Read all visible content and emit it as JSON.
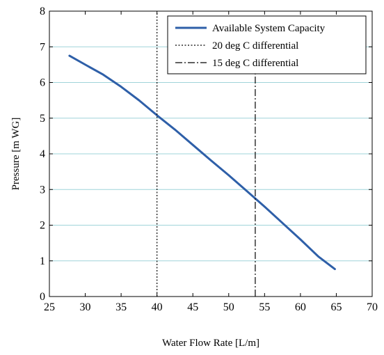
{
  "chart_data": {
    "type": "line",
    "title": "",
    "xlabel": "Water Flow Rate [L/m]",
    "ylabel": "Pressure [m WG]",
    "xlim": [
      25,
      70
    ],
    "ylim": [
      0,
      8
    ],
    "xticks": [
      25,
      30,
      35,
      40,
      45,
      50,
      55,
      60,
      65,
      70
    ],
    "yticks": [
      0,
      1,
      2,
      3,
      4,
      5,
      6,
      7,
      8
    ],
    "grid": "horizontal",
    "grid_color": "#9fd4d9",
    "legend_position": "top-right",
    "series": [
      {
        "name": "Available System Capacity",
        "kind": "curve",
        "color": "#2e5fa8",
        "style": "solid",
        "x": [
          27.8,
          30,
          32.5,
          35,
          37.5,
          40,
          42.5,
          45,
          47.5,
          50,
          52.5,
          55,
          57.5,
          60,
          62.5,
          64.8
        ],
        "y": [
          6.75,
          6.5,
          6.22,
          5.88,
          5.5,
          5.08,
          4.68,
          4.25,
          3.82,
          3.4,
          2.96,
          2.52,
          2.06,
          1.6,
          1.12,
          0.77
        ]
      },
      {
        "name": "20 deg C differential",
        "kind": "vertical",
        "color": "#000000",
        "style": "dotted",
        "x": [
          40,
          40
        ],
        "y": [
          0,
          8
        ]
      },
      {
        "name": "15 deg C differential",
        "kind": "vertical",
        "color": "#000000",
        "style": "dashdot",
        "x": [
          53.7,
          53.7
        ],
        "y": [
          0,
          6.25
        ]
      }
    ]
  }
}
